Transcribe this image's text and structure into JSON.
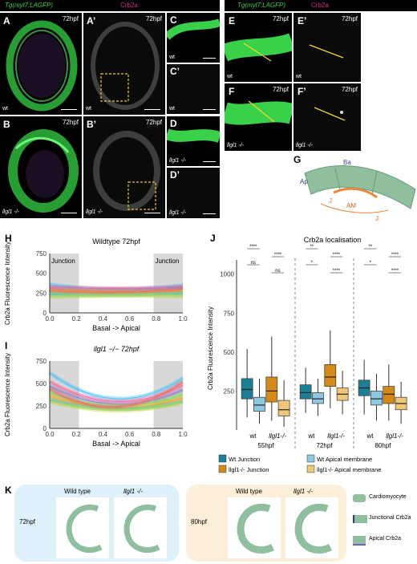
{
  "header": {
    "left_gfp": "Tg(myl7:LAGFP)",
    "left_crb": "Crb2a",
    "right_gfp": "Tg(myl7:LAGFP)",
    "right_crb": "Crb2a"
  },
  "panels": {
    "A": {
      "label": "A",
      "time": "72hpf",
      "genotype": "wt"
    },
    "A2": {
      "label": "A’",
      "time": "72hpf",
      "genotype": "wt"
    },
    "B": {
      "label": "B",
      "time": "72hpf",
      "genotype": "llgl1 -/-"
    },
    "B2": {
      "label": "B’",
      "time": "72hpf",
      "genotype": "llgl1 -/-"
    },
    "C": {
      "label": "C",
      "genotype": "wt"
    },
    "C2": {
      "label": "C’",
      "genotype": "wt"
    },
    "D": {
      "label": "D",
      "genotype": "llgl1 -/-"
    },
    "D2": {
      "label": "D’",
      "genotype": "llgl1 -/-"
    },
    "E": {
      "label": "E",
      "time": "72hpf",
      "genotype": "wt"
    },
    "E2": {
      "label": "E’",
      "time": "72hpf",
      "genotype": "wt"
    },
    "F": {
      "label": "F",
      "time": "72hpf",
      "genotype": "llgl1 -/-"
    },
    "F2": {
      "label": "F’",
      "time": "72hpf",
      "genotype": "llgl1 -/-"
    }
  },
  "schematic_G": {
    "label": "G",
    "ba": "Ba",
    "ap": "Ap",
    "j": "J",
    "am": "AM"
  },
  "panel_labels": {
    "H": "H",
    "I": "I",
    "J": "J",
    "K": "K"
  },
  "colors": {
    "gfp": "#39d14a",
    "crb2a": "#d22d8f",
    "wt_junction": "#1d7f96",
    "wt_apical": "#8fc8e0",
    "mut_junction": "#d38a1a",
    "mut_apical": "#f0c67a",
    "junction_shade": "#c8c8c8",
    "panelK_left_bg": "#dff1fb",
    "panelK_right_bg": "#fcefd9",
    "cardiomyocyte": "#8fbf9f"
  },
  "chart_data": [
    {
      "id": "H",
      "type": "line",
      "title": "Wildtype 72hpf",
      "xlabel": "Basal -> Apical",
      "ylabel": "Crb2a Fluorescence Intensity",
      "xlim": [
        0,
        1
      ],
      "ylim": [
        0,
        750
      ],
      "xticks": [
        "0.0",
        "0.2",
        "0.4",
        "0.6",
        "0.8",
        "1.0"
      ],
      "yticks": [
        "0",
        "250",
        "500",
        "750"
      ],
      "shaded": [
        {
          "x": [
            0,
            0.22
          ],
          "label": "Junction"
        },
        {
          "x": [
            0.78,
            1
          ],
          "label": "Junction"
        }
      ],
      "series": [
        {
          "color": "#4fc3f7",
          "y0": 360,
          "ymid": 300,
          "y1": 350
        },
        {
          "color": "#f06aa0",
          "y0": 330,
          "ymid": 310,
          "y1": 330
        },
        {
          "color": "#8e7cc3",
          "y0": 310,
          "ymid": 280,
          "y1": 315
        },
        {
          "color": "#7ed957",
          "y0": 260,
          "ymid": 250,
          "y1": 270
        },
        {
          "color": "#f5a623",
          "y0": 290,
          "ymid": 270,
          "y1": 280
        },
        {
          "color": "#45c4b0",
          "y0": 230,
          "ymid": 225,
          "y1": 240
        },
        {
          "color": "#b8d84a",
          "y0": 200,
          "ymid": 215,
          "y1": 210
        },
        {
          "color": "#e86e6e",
          "y0": 280,
          "ymid": 260,
          "y1": 300
        }
      ]
    },
    {
      "id": "I",
      "type": "line",
      "title": "llgl1 −/− 72hpf",
      "xlabel": "Basal -> Apical",
      "ylabel": "Crb2a Fluorescence Intensity",
      "xlim": [
        0,
        1
      ],
      "ylim": [
        0,
        750
      ],
      "xticks": [
        "0.0",
        "0.2",
        "0.4",
        "0.6",
        "0.8",
        "1.0"
      ],
      "yticks": [
        "0",
        "250",
        "500",
        "750"
      ],
      "shaded": [
        {
          "x": [
            0,
            0.22
          ]
        },
        {
          "x": [
            0.78,
            1
          ]
        }
      ],
      "series": [
        {
          "color": "#4fc3f7",
          "y0": 620,
          "ymid": 330,
          "y1": 560
        },
        {
          "color": "#f06aa0",
          "y0": 520,
          "ymid": 300,
          "y1": 480
        },
        {
          "color": "#8e7cc3",
          "y0": 470,
          "ymid": 270,
          "y1": 430
        },
        {
          "color": "#7ed957",
          "y0": 400,
          "ymid": 250,
          "y1": 380
        },
        {
          "color": "#f5a623",
          "y0": 360,
          "ymid": 230,
          "y1": 340
        },
        {
          "color": "#45c4b0",
          "y0": 320,
          "ymid": 215,
          "y1": 300
        },
        {
          "color": "#b8d84a",
          "y0": 300,
          "ymid": 200,
          "y1": 290
        },
        {
          "color": "#e86e6e",
          "y0": 440,
          "ymid": 240,
          "y1": 520
        }
      ]
    },
    {
      "id": "J",
      "type": "box",
      "title": "Crb2a localisation",
      "ylabel": "Crb2a Fluorescence Intensity",
      "ylim": [
        0,
        1050
      ],
      "yticks": [
        "250",
        "500",
        "750",
        "1000"
      ],
      "groups": [
        {
          "time": "55hpf",
          "genotypes": [
            "wt",
            "llgl1-/-"
          ],
          "boxes": [
            {
              "series": "Wt Junction",
              "q1": 200,
              "median": 260,
              "q3": 330,
              "lo": 80,
              "hi": 520
            },
            {
              "series": "Wt Apical membrane",
              "q1": 120,
              "median": 160,
              "q3": 210,
              "lo": 40,
              "hi": 330
            },
            {
              "series": "llgl1-/- Junction",
              "q1": 180,
              "median": 250,
              "q3": 340,
              "lo": 60,
              "hi": 600
            },
            {
              "series": "llgl1-/- Apical membrane",
              "q1": 90,
              "median": 130,
              "q3": 190,
              "lo": 20,
              "hi": 320
            }
          ],
          "significance": [
            "****",
            "****",
            "ns",
            "ns"
          ]
        },
        {
          "time": "72hpf",
          "genotypes": [
            "wt",
            "llgl1-/-"
          ],
          "boxes": [
            {
              "series": "Wt Junction",
              "q1": 200,
              "median": 240,
              "q3": 290,
              "lo": 110,
              "hi": 400
            },
            {
              "series": "Wt Apical membrane",
              "q1": 170,
              "median": 200,
              "q3": 240,
              "lo": 90,
              "hi": 330
            },
            {
              "series": "llgl1-/- Junction",
              "q1": 280,
              "median": 340,
              "q3": 420,
              "lo": 140,
              "hi": 640
            },
            {
              "series": "llgl1-/- Apical membrane",
              "q1": 190,
              "median": 230,
              "q3": 270,
              "lo": 100,
              "hi": 380
            }
          ],
          "significance": [
            "**",
            "****",
            "*",
            "****"
          ]
        },
        {
          "time": "80hpf",
          "genotypes": [
            "wt",
            "llgl1-/-"
          ],
          "boxes": [
            {
              "series": "Wt Junction",
              "q1": 220,
              "median": 270,
              "q3": 320,
              "lo": 100,
              "hi": 450
            },
            {
              "series": "Wt Apical membrane",
              "q1": 160,
              "median": 200,
              "q3": 250,
              "lo": 60,
              "hi": 360
            },
            {
              "series": "llgl1-/- Junction",
              "q1": 170,
              "median": 230,
              "q3": 280,
              "lo": 60,
              "hi": 420
            },
            {
              "series": "llgl1-/- Apical membrane",
              "q1": 130,
              "median": 170,
              "q3": 210,
              "lo": 40,
              "hi": 310
            }
          ],
          "significance": [
            "**",
            "****",
            "*",
            "****"
          ]
        }
      ],
      "legend": [
        {
          "name": "Wt Junction",
          "color": "#1d7f96"
        },
        {
          "name": "Wt Apical membrane",
          "color": "#8fc8e0"
        },
        {
          "name": "llgl1-/- Junction",
          "color": "#d38a1a"
        },
        {
          "name": "llgl1-/- Apical membrane",
          "color": "#f0c67a"
        }
      ]
    }
  ],
  "panel_K": {
    "label": "K",
    "left_time": "72hpf",
    "right_time": "80hpf",
    "wild_type": "Wild type",
    "mutant": "llgl1 -/-",
    "legend": [
      "Cardiomyocyte",
      "Junctional Crb2a",
      "Apical Crb2a"
    ]
  }
}
